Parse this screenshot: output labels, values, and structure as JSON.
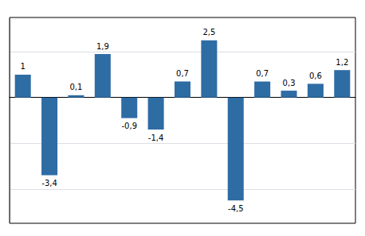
{
  "chart_data": {
    "type": "bar",
    "categories": [
      null,
      null,
      null,
      null,
      null,
      null,
      null,
      null,
      null,
      null,
      null,
      null,
      null
    ],
    "values": [
      1.0,
      -3.4,
      0.1,
      1.9,
      -0.9,
      -1.4,
      0.7,
      2.5,
      -4.5,
      0.7,
      0.3,
      0.6,
      1.2
    ],
    "value_labels": [
      "1",
      "-3,4",
      "0,1",
      "1,9",
      "-0,9",
      "-1,4",
      "0,7",
      "2,5",
      "-4,5",
      "0,7",
      "0,3",
      "0,6",
      "1,2"
    ],
    "color": "#2E6CA4",
    "ylim": [
      -5.5,
      3.5
    ],
    "yticks": [
      -4,
      -2,
      0,
      2
    ],
    "grid": true,
    "data_labels": true,
    "tick_labels": false
  }
}
